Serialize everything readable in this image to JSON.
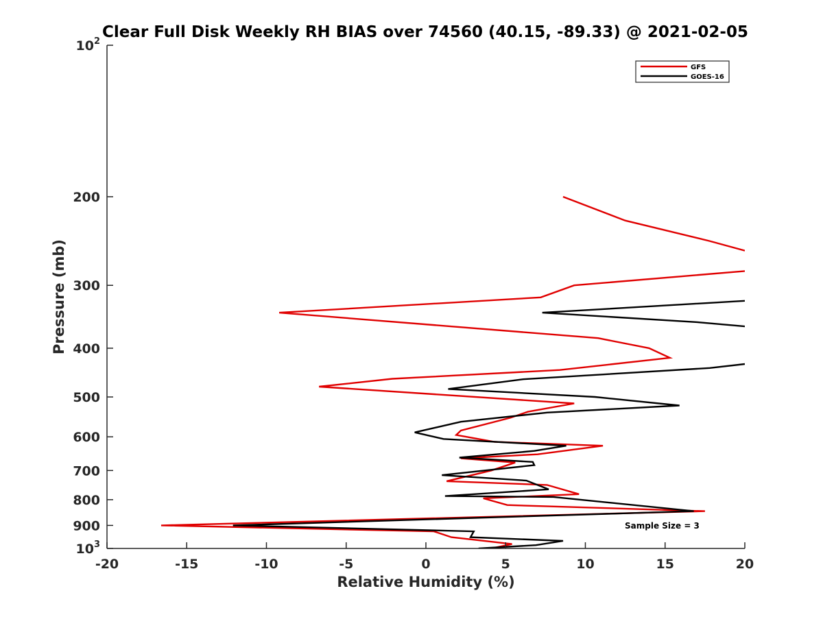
{
  "chart_data": {
    "type": "line",
    "title": "Clear Full Disk Weekly RH BIAS over 74560 (40.15, -89.33) @ 2021-02-05",
    "xlabel": "Relative Humidity (%)",
    "ylabel": "Pressure (mb)",
    "xlim": [
      -20,
      20
    ],
    "ylim": [
      100,
      1000
    ],
    "yscale": "log",
    "y_reversed": true,
    "grid": false,
    "legend_position": "top-right",
    "x_ticks": [
      "-20",
      "-15",
      "-10",
      "-5",
      "0",
      "5",
      "10",
      "15",
      "20"
    ],
    "y_ticks": [
      {
        "value": 100,
        "base": "10",
        "exp": "2"
      },
      {
        "value": 200,
        "label": "200"
      },
      {
        "value": 300,
        "label": "300"
      },
      {
        "value": 400,
        "label": "400"
      },
      {
        "value": 500,
        "label": "500"
      },
      {
        "value": 600,
        "label": "600"
      },
      {
        "value": 700,
        "label": "700"
      },
      {
        "value": 800,
        "label": "800"
      },
      {
        "value": 900,
        "label": "900"
      },
      {
        "value": 1000,
        "base": "10",
        "exp": "3"
      }
    ],
    "annotation": "Sample Size = 3",
    "series": [
      {
        "name": "GFS",
        "color": "#e00000",
        "points": [
          [
            8.6,
            200
          ],
          [
            12.5,
            223
          ],
          [
            17.8,
            245
          ],
          [
            20.0,
            256
          ],
          [
            null,
            268
          ],
          [
            20.0,
            281
          ],
          [
            9.3,
            300
          ],
          [
            7.2,
            317
          ],
          [
            -9.2,
            340
          ],
          [
            10.8,
            382
          ],
          [
            14.0,
            400
          ],
          [
            15.3,
            418
          ],
          [
            8.4,
            442
          ],
          [
            -2.1,
            460
          ],
          [
            -6.7,
            477
          ],
          [
            9.3,
            515
          ],
          [
            6.4,
            535
          ],
          [
            5.3,
            550
          ],
          [
            2.2,
            583
          ],
          [
            1.9,
            595
          ],
          [
            4.3,
            614
          ],
          [
            11.1,
            625
          ],
          [
            7.0,
            650
          ],
          [
            2.2,
            662
          ],
          [
            5.6,
            675
          ],
          [
            4.1,
            700
          ],
          [
            1.3,
            735
          ],
          [
            7.6,
            748
          ],
          [
            9.6,
            780
          ],
          [
            3.6,
            795
          ],
          [
            5.1,
            820
          ],
          [
            17.5,
            843
          ],
          [
            -16.6,
            900
          ],
          [
            0.5,
            925
          ],
          [
            1.6,
            950
          ],
          [
            5.4,
            980
          ],
          [
            4.1,
            1000
          ]
        ]
      },
      {
        "name": "GOES-16",
        "color": "#000000",
        "points": [
          [
            20.0,
            322
          ],
          [
            7.3,
            340
          ],
          [
            17.0,
            355
          ],
          [
            20.0,
            362
          ],
          [
            null,
            390
          ],
          [
            20.0,
            430
          ],
          [
            17.8,
            438
          ],
          [
            6.1,
            461
          ],
          [
            1.4,
            482
          ],
          [
            10.6,
            500
          ],
          [
            15.9,
            520
          ],
          [
            7.6,
            537
          ],
          [
            2.2,
            560
          ],
          [
            -0.7,
            588
          ],
          [
            1.1,
            606
          ],
          [
            8.8,
            625
          ],
          [
            6.8,
            640
          ],
          [
            2.1,
            660
          ],
          [
            6.7,
            673
          ],
          [
            6.8,
            683
          ],
          [
            1.0,
            715
          ],
          [
            6.3,
            733
          ],
          [
            7.7,
            763
          ],
          [
            1.2,
            787
          ],
          [
            8.0,
            790
          ],
          [
            16.8,
            843
          ],
          [
            -12.1,
            900
          ],
          [
            3.0,
            925
          ],
          [
            2.8,
            950
          ],
          [
            8.6,
            966
          ],
          [
            6.9,
            985
          ],
          [
            3.3,
            1000
          ]
        ]
      }
    ]
  }
}
